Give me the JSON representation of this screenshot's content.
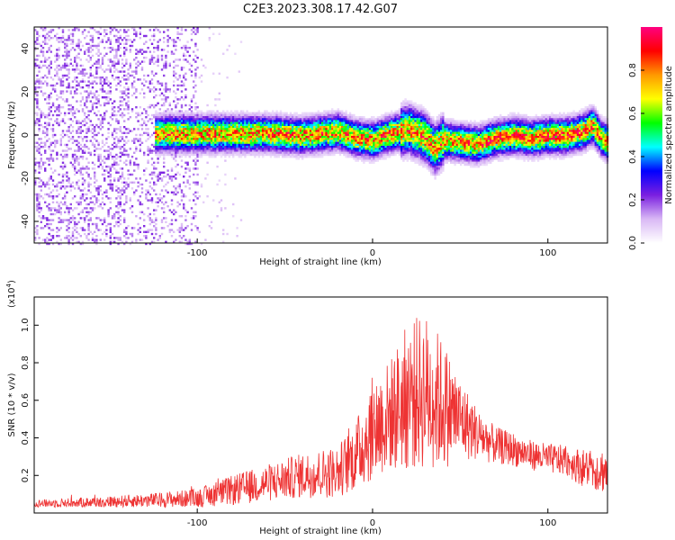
{
  "figure": {
    "title": "C2E3.2023.308.17.42.G07"
  },
  "chart_data": [
    {
      "type": "heatmap",
      "title": "C2E3.2023.308.17.42.G07",
      "xlabel": "Height of straight line (km)",
      "ylabel": "Frequency (Hz)",
      "xlim": [
        -193,
        134
      ],
      "ylim": [
        -50,
        50
      ],
      "x_ticks": [
        -100,
        0,
        100
      ],
      "x_tick_labels": [
        "-100",
        "0",
        "100"
      ],
      "y_ticks": [
        -40,
        -20,
        0,
        20,
        40
      ],
      "y_tick_labels": [
        "-40",
        "-20",
        "0",
        "20",
        "40"
      ],
      "colorbar": {
        "label": "Normalized spectral amplitude",
        "range": [
          0,
          1
        ],
        "ticks": [
          0.0,
          0.2,
          0.4,
          0.6,
          0.8
        ],
        "tick_labels": [
          "0.0",
          "0.2",
          "0.4",
          "0.6",
          "0.8"
        ],
        "colors": [
          "#ffffff",
          "#d9b8f5",
          "#7a1fe0",
          "#0000ff",
          "#00ffff",
          "#00ff00",
          "#ffff00",
          "#ff9900",
          "#ff0000",
          "#ff0080"
        ]
      },
      "ridge": {
        "x": [
          -120,
          -100,
          -80,
          -60,
          -40,
          -20,
          -10,
          0,
          10,
          20,
          30,
          35,
          40,
          50,
          60,
          70,
          80,
          90,
          100,
          110,
          120,
          125,
          130,
          134
        ],
        "frequency": [
          1,
          1,
          1,
          1,
          0,
          2,
          -1,
          -2,
          1,
          3,
          -1,
          -6,
          -2,
          -3,
          -4,
          -1,
          0,
          -1,
          0,
          0,
          2,
          5,
          -1,
          -3
        ]
      },
      "noise_region_x": [
        -193,
        -100
      ]
    },
    {
      "type": "line",
      "xlabel": "Height of straight line (km)",
      "ylabel": "SNR (10 * v/v)",
      "y_scale_label": "(x10",
      "y_scale_exp": "4",
      "y_scale_close": ")",
      "xlim": [
        -193,
        134
      ],
      "ylim": [
        0,
        1.15
      ],
      "x_ticks": [
        -100,
        0,
        100
      ],
      "x_tick_labels": [
        "-100",
        "0",
        "100"
      ],
      "y_ticks": [
        0.2,
        0.4,
        0.6,
        0.8,
        1.0
      ],
      "y_tick_labels": [
        "0.2",
        "0.4",
        "0.6",
        "0.8",
        "1.0"
      ],
      "color": "#ee3333",
      "envelope": {
        "x": [
          -193,
          -150,
          -120,
          -100,
          -80,
          -60,
          -40,
          -20,
          -10,
          0,
          10,
          20,
          30,
          40,
          50,
          60,
          70,
          80,
          90,
          100,
          110,
          120,
          130,
          134
        ],
        "mean": [
          0.05,
          0.06,
          0.07,
          0.08,
          0.12,
          0.16,
          0.2,
          0.22,
          0.3,
          0.45,
          0.52,
          0.62,
          0.65,
          0.58,
          0.5,
          0.42,
          0.36,
          0.34,
          0.31,
          0.29,
          0.28,
          0.24,
          0.23,
          0.22
        ],
        "spread": [
          0.02,
          0.03,
          0.04,
          0.05,
          0.08,
          0.1,
          0.12,
          0.14,
          0.18,
          0.28,
          0.3,
          0.4,
          0.42,
          0.35,
          0.22,
          0.14,
          0.1,
          0.09,
          0.08,
          0.08,
          0.08,
          0.1,
          0.12,
          0.12
        ]
      }
    }
  ]
}
